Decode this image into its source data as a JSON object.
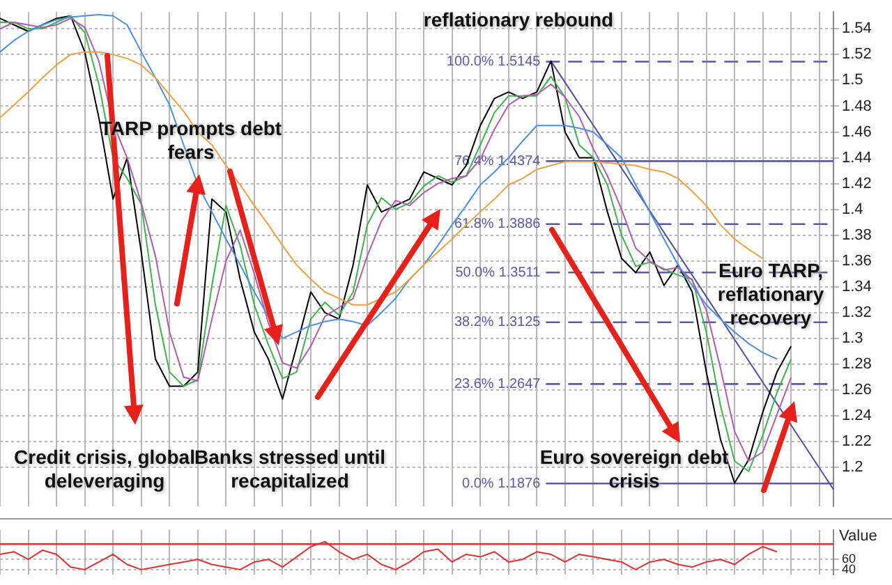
{
  "chart_data": [
    {
      "type": "line",
      "categories": [
        null,
        null,
        null,
        null,
        null,
        null,
        null,
        null,
        null,
        null,
        null,
        null,
        null,
        null,
        null,
        null,
        null,
        null,
        null,
        null,
        null,
        null,
        null,
        null,
        null,
        null,
        null,
        null,
        null,
        null,
        null,
        null,
        null,
        null,
        null,
        null,
        null,
        null,
        null,
        null,
        null,
        null,
        null,
        null,
        null,
        null,
        null,
        null,
        null,
        null,
        null,
        null,
        null,
        null,
        null,
        null,
        null,
        null,
        null,
        null
      ],
      "ylim": [
        1.17,
        1.553
      ],
      "yticks": [
        1.2,
        1.22,
        1.24,
        1.26,
        1.28,
        1.3,
        1.32,
        1.34,
        1.36,
        1.38,
        1.4,
        1.42,
        1.44,
        1.46,
        1.48,
        1.5,
        1.52,
        1.54
      ],
      "grid": true,
      "tick_labels": "y",
      "marker": "none",
      "series": [
        {
          "color": "#f0a040",
          "values": [
            1.471,
            1.481,
            1.491,
            1.502,
            1.512,
            1.52,
            1.522,
            1.522,
            1.52,
            1.517,
            1.512,
            1.502,
            1.489,
            1.476,
            1.46,
            1.45,
            1.434,
            1.419,
            1.403,
            1.388,
            1.372,
            1.357,
            1.346,
            1.336,
            1.331,
            1.326,
            1.326,
            1.331,
            1.336,
            1.346,
            1.357,
            1.367,
            1.377,
            1.388,
            1.398,
            1.408,
            1.419,
            1.424,
            1.431,
            1.434,
            1.437,
            1.437,
            1.437,
            1.436,
            1.435,
            1.434,
            1.431,
            1.429,
            1.424,
            1.414,
            1.403,
            1.388,
            1.377,
            1.369,
            1.362,
            null,
            null,
            null,
            null,
            null
          ]
        },
        {
          "color": "#4a90e2",
          "values": [
            1.522,
            1.531,
            1.538,
            1.543,
            1.547,
            1.549,
            1.55,
            1.551,
            1.55,
            1.543,
            1.522,
            1.502,
            1.481,
            1.45,
            1.419,
            1.398,
            1.377,
            1.357,
            1.336,
            1.317,
            1.3,
            1.305,
            1.31,
            1.313,
            1.315,
            1.313,
            1.31,
            1.32,
            1.331,
            1.346,
            1.357,
            1.372,
            1.388,
            1.403,
            1.419,
            1.429,
            1.44,
            1.453,
            1.465,
            1.465,
            1.465,
            1.463,
            1.46,
            1.45,
            1.44,
            1.419,
            1.398,
            1.377,
            1.357,
            1.341,
            1.326,
            1.315,
            1.305,
            1.296,
            1.289,
            1.284,
            null,
            null,
            null,
            null
          ]
        },
        {
          "color": "#b05cb0",
          "values": [
            1.54,
            1.545,
            1.543,
            1.541,
            1.543,
            1.548,
            1.541,
            1.515,
            1.467,
            1.44,
            1.405,
            1.364,
            1.305,
            1.27,
            1.267,
            1.315,
            1.36,
            1.384,
            1.35,
            1.312,
            1.281,
            1.277,
            1.294,
            1.317,
            1.324,
            1.331,
            1.364,
            1.391,
            1.407,
            1.403,
            1.413,
            1.42,
            1.424,
            1.426,
            1.439,
            1.462,
            1.481,
            1.488,
            1.489,
            1.497,
            1.487,
            1.472,
            1.447,
            1.426,
            1.4,
            1.37,
            1.36,
            1.353,
            1.355,
            1.345,
            1.322,
            1.277,
            1.228,
            1.205,
            1.212,
            1.241,
            1.27,
            null,
            null,
            null
          ]
        },
        {
          "color": "#3cb44b",
          "values": [
            1.545,
            1.545,
            1.54,
            1.54,
            1.545,
            1.55,
            1.537,
            1.497,
            1.44,
            1.424,
            1.404,
            1.326,
            1.274,
            1.263,
            1.268,
            1.341,
            1.403,
            1.372,
            1.326,
            1.295,
            1.269,
            1.274,
            1.315,
            1.328,
            1.318,
            1.336,
            1.388,
            1.409,
            1.4,
            1.405,
            1.418,
            1.426,
            1.421,
            1.426,
            1.45,
            1.475,
            1.488,
            1.488,
            1.488,
            1.503,
            1.487,
            1.45,
            1.44,
            1.419,
            1.38,
            1.356,
            1.359,
            1.354,
            1.349,
            1.346,
            1.305,
            1.248,
            1.205,
            1.197,
            1.225,
            1.258,
            1.284,
            null,
            null,
            null
          ]
        },
        {
          "color": "#000000",
          "values": [
            1.548,
            1.543,
            1.538,
            1.543,
            1.548,
            1.55,
            1.522,
            1.471,
            1.408,
            1.44,
            1.367,
            1.284,
            1.263,
            1.263,
            1.274,
            1.408,
            1.398,
            1.346,
            1.305,
            1.284,
            1.253,
            1.294,
            1.336,
            1.32,
            1.315,
            1.357,
            1.419,
            1.398,
            1.403,
            1.408,
            1.429,
            1.424,
            1.419,
            1.434,
            1.465,
            1.486,
            1.491,
            1.486,
            1.491,
            1.515,
            1.46,
            1.44,
            1.44,
            1.398,
            1.362,
            1.351,
            1.367,
            1.341,
            1.357,
            1.336,
            1.274,
            1.222,
            1.188,
            1.206,
            1.243,
            1.274,
            1.294,
            null,
            null,
            null
          ]
        },
        {
          "type": "line",
          "color": "#5050a0",
          "values": [
            null,
            null,
            null,
            null,
            null,
            null,
            null,
            null,
            null,
            null,
            null,
            null,
            null,
            null,
            null,
            null,
            null,
            null,
            null,
            null,
            null,
            null,
            null,
            null,
            null,
            null,
            null,
            null,
            null,
            null,
            null,
            null,
            null,
            null,
            null,
            null,
            null,
            null,
            null,
            1.515,
            null,
            null,
            null,
            null,
            null,
            null,
            null,
            null,
            null,
            null,
            null,
            null,
            null,
            null,
            null,
            null,
            null,
            null,
            null,
            1.183
          ]
        }
      ],
      "ref_lines": [
        {
          "axis": "y",
          "value": 1.5145,
          "label": "100.0% 1.5145",
          "color": "#5a5aa8",
          "line_style": "dashed"
        },
        {
          "axis": "y",
          "value": 1.4374,
          "label": "76.4% 1.4374",
          "color": "#5a5aa8",
          "line_style": "solid"
        },
        {
          "axis": "y",
          "value": 1.3886,
          "label": "61.8% 1.3886",
          "color": "#5a5aa8",
          "line_style": "dashed"
        },
        {
          "axis": "y",
          "value": 1.3511,
          "label": "50.0% 1.3511",
          "color": "#5a5aa8",
          "line_style": "dashed"
        },
        {
          "axis": "y",
          "value": 1.3125,
          "label": "38.2% 1.3125",
          "color": "#5a5aa8",
          "line_style": "dashed"
        },
        {
          "axis": "y",
          "value": 1.2647,
          "label": "23.6% 1.2647",
          "color": "#5a5aa8",
          "line_style": "dashed"
        },
        {
          "axis": "y",
          "value": 1.1876,
          "label": "0.0% 1.1876",
          "color": "#5a5aa8",
          "line_style": "solid"
        }
      ],
      "annotations": [
        "reflationary rebound",
        "TARP prompts debt fears",
        "Credit crisis, global deleveraging",
        "Banks stressed until recapitalized",
        "Euro sovereign debt crisis",
        "Euro TARP, reflationary recovery"
      ]
    },
    {
      "type": "line",
      "categories": [
        null,
        null,
        null,
        null,
        null,
        null,
        null,
        null,
        null,
        null,
        null,
        null,
        null,
        null,
        null,
        null,
        null,
        null,
        null,
        null,
        null,
        null,
        null,
        null,
        null,
        null,
        null,
        null,
        null,
        null,
        null,
        null,
        null,
        null,
        null,
        null,
        null,
        null,
        null,
        null,
        null,
        null,
        null,
        null,
        null,
        null,
        null,
        null,
        null,
        null,
        null,
        null,
        null,
        null,
        null,
        null,
        null,
        null,
        null,
        null
      ],
      "ylabel": "Value",
      "ylim": [
        30,
        118
      ],
      "yticks": [
        40,
        60
      ],
      "grid": true,
      "tick_labels": "y",
      "marker": "none",
      "series": [
        {
          "color": "#e03030",
          "values": [
            70,
            75,
            60,
            78,
            70,
            45,
            40,
            55,
            70,
            50,
            40,
            45,
            50,
            55,
            60,
            50,
            45,
            40,
            55,
            60,
            45,
            65,
            85,
            95,
            75,
            60,
            70,
            50,
            40,
            55,
            75,
            80,
            55,
            70,
            65,
            75,
            55,
            60,
            75,
            70,
            55,
            70,
            65,
            60,
            55,
            40,
            55,
            60,
            50,
            45,
            55,
            60,
            50,
            70,
            85,
            75,
            null,
            null,
            null,
            null
          ]
        }
      ],
      "ref_lines": [
        {
          "axis": "y",
          "value": 90,
          "color": "#e03030",
          "line_style": "solid"
        }
      ]
    }
  ]
}
